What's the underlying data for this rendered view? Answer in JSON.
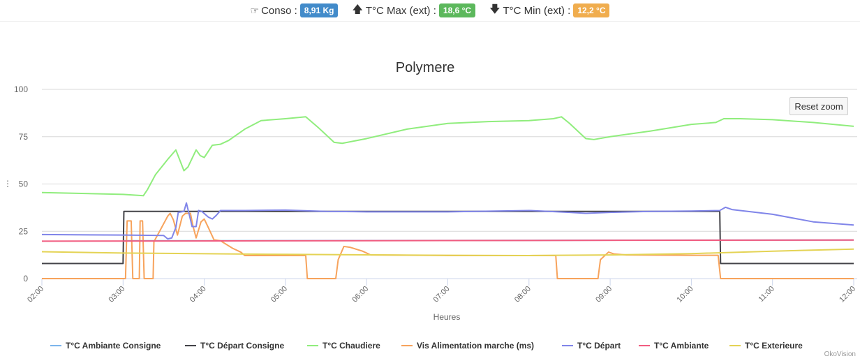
{
  "header": {
    "conso_icon": "hand-pointer-icon",
    "conso_label": "Conso :",
    "conso_value": "8,91 Kg",
    "conso_color": "#428bca",
    "max_icon": "arrow-up-icon",
    "max_label": "T°C Max (ext) :",
    "max_value": "18,6 °C",
    "max_color": "#5cb85c",
    "min_icon": "arrow-down-icon",
    "min_label": "T°C Min (ext) :",
    "min_value": "12,2 °C",
    "min_color": "#f0ad4e"
  },
  "reset_zoom": "Reset zoom",
  "credit": "OkoVision",
  "chart_data": {
    "type": "line",
    "title": "Polymere",
    "xlabel": "Heures",
    "ylabel": "",
    "xlim": [
      2,
      12
    ],
    "ylim": [
      0,
      100
    ],
    "xticks": [
      "02:00",
      "03:00",
      "04:00",
      "05:00",
      "06:00",
      "07:00",
      "08:00",
      "09:00",
      "10:00",
      "11:00",
      "12:00"
    ],
    "yticks": [
      "0",
      "25",
      "50",
      "75",
      "100"
    ],
    "grid": true,
    "legend_position": "bottom",
    "series": [
      {
        "name": "T°C Ambiante Consigne",
        "color": "#7cb5ec",
        "points": [
          [
            3,
            20
          ],
          [
            12,
            20.4
          ]
        ]
      },
      {
        "name": "T°C Départ Consigne",
        "color": "#434348",
        "points": [
          [
            2,
            8
          ],
          [
            3,
            8
          ],
          [
            3.01,
            35.5
          ],
          [
            10.35,
            35.5
          ],
          [
            10.36,
            8
          ],
          [
            12,
            8
          ]
        ]
      },
      {
        "name": "T°C Chaudiere",
        "color": "#90ed7d",
        "points": [
          [
            2,
            45.5
          ],
          [
            3,
            44.5
          ],
          [
            3.25,
            43.8
          ],
          [
            3.3,
            47
          ],
          [
            3.4,
            55
          ],
          [
            3.55,
            63
          ],
          [
            3.65,
            68
          ],
          [
            3.75,
            57
          ],
          [
            3.8,
            59
          ],
          [
            3.9,
            68
          ],
          [
            3.95,
            65
          ],
          [
            4,
            64
          ],
          [
            4.1,
            70.5
          ],
          [
            4.2,
            71
          ],
          [
            4.3,
            73
          ],
          [
            4.5,
            79
          ],
          [
            4.7,
            83.5
          ],
          [
            5,
            84.5
          ],
          [
            5.25,
            85.5
          ],
          [
            5.4,
            80
          ],
          [
            5.6,
            72
          ],
          [
            5.7,
            71.5
          ],
          [
            6,
            74
          ],
          [
            6.5,
            79
          ],
          [
            7,
            82
          ],
          [
            7.5,
            83
          ],
          [
            8,
            83.5
          ],
          [
            8.3,
            84.5
          ],
          [
            8.4,
            85.5
          ],
          [
            8.5,
            82
          ],
          [
            8.7,
            74
          ],
          [
            8.8,
            73.5
          ],
          [
            9,
            75
          ],
          [
            9.5,
            78
          ],
          [
            10,
            81.5
          ],
          [
            10.3,
            82.5
          ],
          [
            10.4,
            84.5
          ],
          [
            10.6,
            84.5
          ],
          [
            11,
            84
          ],
          [
            11.5,
            82.5
          ],
          [
            12,
            80.5
          ]
        ]
      },
      {
        "name": "Vis Alimentation marche (ms)",
        "color": "#f7a35c",
        "points": [
          [
            2,
            0
          ],
          [
            3.03,
            0
          ],
          [
            3.05,
            30.5
          ],
          [
            3.1,
            30.5
          ],
          [
            3.12,
            0
          ],
          [
            3.2,
            0
          ],
          [
            3.21,
            30.5
          ],
          [
            3.24,
            30.5
          ],
          [
            3.26,
            0
          ],
          [
            3.37,
            0
          ],
          [
            3.38,
            19.5
          ],
          [
            3.45,
            25
          ],
          [
            3.55,
            33
          ],
          [
            3.58,
            34.5
          ],
          [
            3.62,
            31
          ],
          [
            3.67,
            23
          ],
          [
            3.73,
            33
          ],
          [
            3.77,
            34.5
          ],
          [
            3.83,
            34.5
          ],
          [
            3.86,
            28
          ],
          [
            3.9,
            21.5
          ],
          [
            3.96,
            30
          ],
          [
            4,
            31.5
          ],
          [
            4.05,
            27
          ],
          [
            4.12,
            20.5
          ],
          [
            4.2,
            20
          ],
          [
            4.35,
            16
          ],
          [
            4.45,
            14
          ],
          [
            4.5,
            12.2
          ],
          [
            5.25,
            12.2
          ],
          [
            5.27,
            0
          ],
          [
            5.62,
            0
          ],
          [
            5.65,
            10
          ],
          [
            5.72,
            17
          ],
          [
            5.8,
            16.5
          ],
          [
            5.95,
            14.5
          ],
          [
            6.05,
            12.5
          ],
          [
            7,
            12.2
          ],
          [
            8.33,
            12.2
          ],
          [
            8.35,
            0
          ],
          [
            8.85,
            0
          ],
          [
            8.88,
            10
          ],
          [
            8.98,
            14
          ],
          [
            9.05,
            13
          ],
          [
            9.2,
            12.5
          ],
          [
            10,
            12.3
          ],
          [
            10.33,
            12.3
          ],
          [
            10.36,
            0
          ],
          [
            12,
            0
          ]
        ]
      },
      {
        "name": "T°C Départ",
        "color": "#8085e9",
        "points": [
          [
            2,
            23.3
          ],
          [
            3,
            23
          ],
          [
            3.5,
            22.8
          ],
          [
            3.55,
            21
          ],
          [
            3.6,
            21.5
          ],
          [
            3.65,
            27
          ],
          [
            3.68,
            35
          ],
          [
            3.75,
            35.5
          ],
          [
            3.78,
            40
          ],
          [
            3.82,
            33
          ],
          [
            3.85,
            27.5
          ],
          [
            3.9,
            27.5
          ],
          [
            3.93,
            36
          ],
          [
            3.97,
            35.5
          ],
          [
            4.05,
            32.5
          ],
          [
            4.1,
            31.5
          ],
          [
            4.15,
            33.5
          ],
          [
            4.2,
            36
          ],
          [
            4.5,
            36
          ],
          [
            5,
            36.2
          ],
          [
            5.5,
            35.5
          ],
          [
            6,
            35.3
          ],
          [
            7,
            35.3
          ],
          [
            8,
            36
          ],
          [
            8.5,
            35
          ],
          [
            8.7,
            34.5
          ],
          [
            9,
            35
          ],
          [
            9.5,
            35.5
          ],
          [
            10,
            35.7
          ],
          [
            10.35,
            36
          ],
          [
            10.42,
            37.7
          ],
          [
            10.5,
            36.5
          ],
          [
            11,
            34
          ],
          [
            11.5,
            30
          ],
          [
            12,
            28.3
          ]
        ]
      },
      {
        "name": "T°C Ambiante",
        "color": "#f15c80",
        "points": [
          [
            2,
            19.8
          ],
          [
            12,
            20.4
          ]
        ]
      },
      {
        "name": "T°C Exterieure",
        "color": "#e4d354",
        "points": [
          [
            2,
            14.2
          ],
          [
            3,
            13.5
          ],
          [
            5,
            12.8
          ],
          [
            7,
            12.3
          ],
          [
            8,
            12.2
          ],
          [
            9,
            12.5
          ],
          [
            10,
            13.2
          ],
          [
            11,
            14.5
          ],
          [
            12,
            15.6
          ]
        ]
      }
    ]
  }
}
